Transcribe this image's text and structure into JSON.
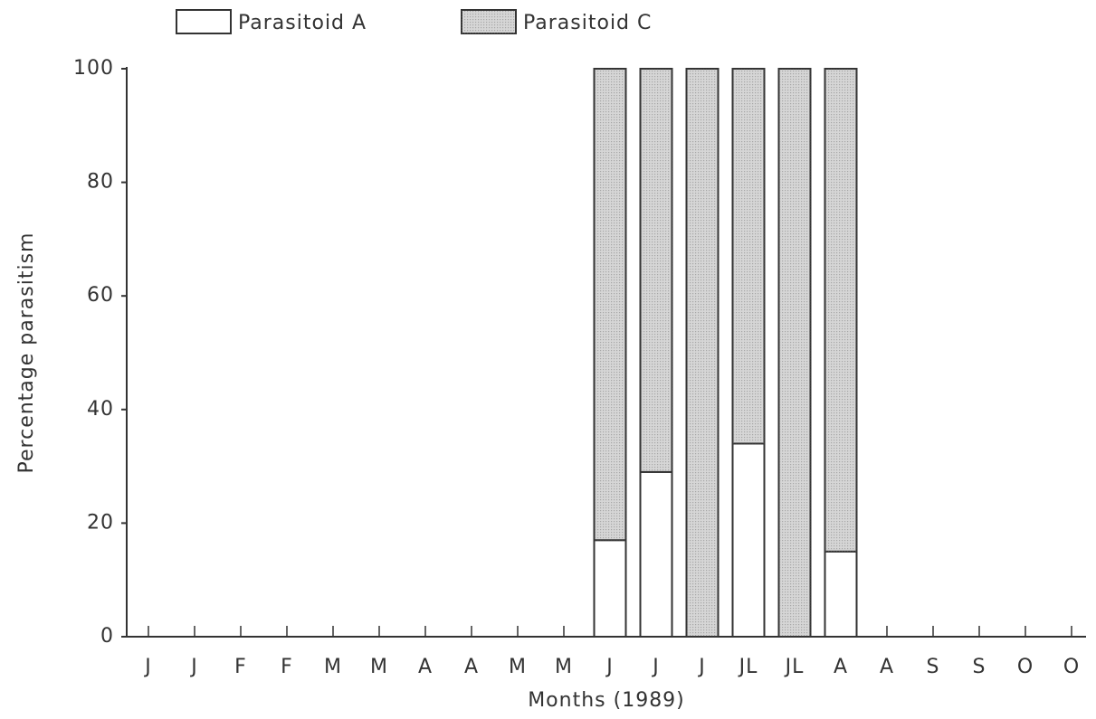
{
  "chart_data": {
    "type": "stacked_bar",
    "x_label": "Months (1989)",
    "y_label": "Percentage parasitism",
    "categories": [
      "J",
      "J",
      "F",
      "F",
      "M",
      "M",
      "A",
      "A",
      "M",
      "M",
      "J",
      "J",
      "J",
      "JL",
      "JL",
      "A",
      "A",
      "S",
      "S",
      "O",
      "O"
    ],
    "series": [
      {
        "name": "Parasitoid A",
        "color": "#ffffff",
        "values": [
          0,
          0,
          0,
          0,
          0,
          0,
          0,
          0,
          0,
          0,
          17,
          29,
          0,
          34,
          0,
          15,
          0,
          0,
          0,
          0,
          0
        ]
      },
      {
        "name": "Parasitoid C",
        "color": "#d6d6d6",
        "values": [
          0,
          0,
          0,
          0,
          0,
          0,
          0,
          0,
          0,
          0,
          83,
          71,
          100,
          66,
          100,
          85,
          0,
          0,
          0,
          0,
          0
        ]
      }
    ],
    "ylim": [
      0,
      100
    ],
    "yticks": [
      0,
      20,
      40,
      60,
      80,
      100
    ],
    "grid": false,
    "legend": "top"
  }
}
